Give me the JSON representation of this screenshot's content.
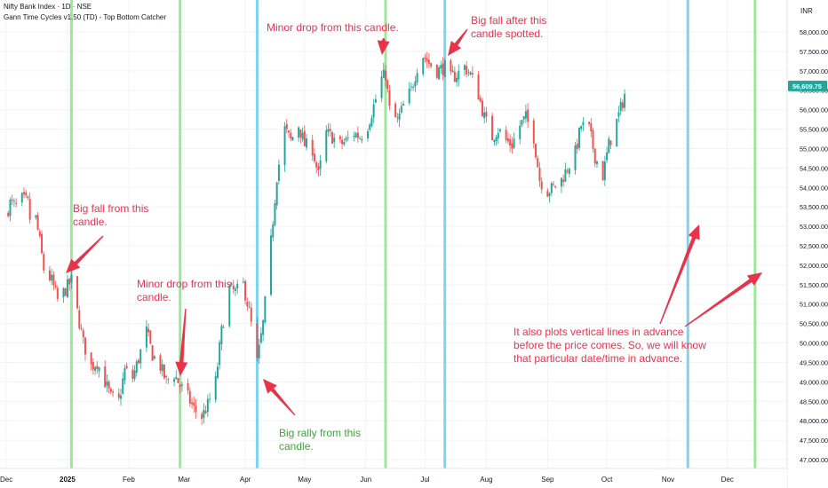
{
  "header": {
    "title": "Nifty Bank Index · 1D · NSE",
    "indicator": "Gann Time Cycles v1.50 (TD) - Top Bottom Catcher"
  },
  "price_axis": {
    "currency": "INR",
    "current_price": "56,609.75",
    "current_price_color": "#26a69a"
  },
  "time_axis_labels": [
    "Dec",
    "2025",
    "Feb",
    "Mar",
    "Apr",
    "May",
    "Jun",
    "Jul",
    "Aug",
    "Sep",
    "Oct",
    "Nov",
    "Dec"
  ],
  "annotations": [
    {
      "text": "Big fall from this\ncandle.",
      "color": "#e8344b"
    },
    {
      "text": "Minor drop from this\ncandle.",
      "color": "#e8344b"
    },
    {
      "text": "Big rally from this\ncandle.",
      "color": "#3fa63c"
    },
    {
      "text": "Minor drop from this candle.",
      "color": "#e8344b"
    },
    {
      "text": "Big fall after this\ncandle spotted.",
      "color": "#e8344b"
    },
    {
      "text": "It also plots vertical lines in advance\nbefore the price comes. So, we will know\nthat particular date/time in advance.",
      "color": "#e8344b"
    }
  ],
  "colors": {
    "up": "#26a69a",
    "down": "#ef5350",
    "green_cycle": "#9be89b",
    "blue_cycle": "#7dd3f2",
    "arrow": "#e8344b"
  },
  "chart_data": {
    "type": "candlestick",
    "ylim": [
      46700,
      58600
    ],
    "y_ticks": [
      47000,
      47500,
      48000,
      48500,
      49000,
      49500,
      50000,
      50500,
      51000,
      51500,
      52000,
      52500,
      53000,
      53500,
      54000,
      54500,
      55000,
      55500,
      56000,
      56500,
      57000,
      57500,
      58000
    ],
    "y_tick_labels": [
      "47,000.00",
      "47,500.00",
      "48,000.00",
      "48,500.00",
      "49,000.00",
      "49,500.00",
      "50,000.00",
      "50,500.00",
      "51,000.00",
      "51,500.00",
      "52,000.00",
      "52,500.00",
      "53,000.00",
      "53,500.00",
      "54,000.00",
      "54,500.00",
      "55,000.00",
      "55,500.00",
      "56,000.00",
      "56,500.00",
      "57,000.00",
      "57,500.00",
      "58,000.00"
    ],
    "xlim": [
      "2024-12-01",
      "2025-12-20"
    ],
    "x_ticks": [
      "2024-12-01",
      "2025-01-01",
      "2025-02-01",
      "2025-03-01",
      "2025-04-01",
      "2025-05-01",
      "2025-06-01",
      "2025-07-01",
      "2025-08-01",
      "2025-09-01",
      "2025-10-01",
      "2025-11-01",
      "2025-12-01"
    ],
    "cycle_lines": [
      {
        "date": "2025-01-03",
        "color": "green"
      },
      {
        "date": "2025-02-27",
        "color": "green"
      },
      {
        "date": "2025-04-07",
        "color": "blue"
      },
      {
        "date": "2025-06-11",
        "color": "green"
      },
      {
        "date": "2025-07-11",
        "color": "blue"
      },
      {
        "date": "2025-11-11",
        "color": "blue"
      },
      {
        "date": "2025-12-15",
        "color": "green"
      }
    ],
    "close_path": [
      [
        "2024-12-01",
        53300
      ],
      [
        "2024-12-03",
        53600
      ],
      [
        "2024-12-06",
        53500
      ],
      [
        "2024-12-09",
        53700
      ],
      [
        "2024-12-12",
        53600
      ],
      [
        "2024-12-14",
        52800
      ],
      [
        "2024-12-16",
        53200
      ],
      [
        "2024-12-18",
        52600
      ],
      [
        "2024-12-20",
        51900
      ],
      [
        "2024-12-24",
        51600
      ],
      [
        "2024-12-27",
        51100
      ],
      [
        "2024-12-30",
        51300
      ],
      [
        "2025-01-03",
        51600
      ],
      [
        "2025-01-06",
        50800
      ],
      [
        "2025-01-09",
        50000
      ],
      [
        "2025-01-13",
        49400
      ],
      [
        "2025-01-16",
        49500
      ],
      [
        "2025-01-20",
        49000
      ],
      [
        "2025-01-23",
        48600
      ],
      [
        "2025-01-27",
        48500
      ],
      [
        "2025-01-30",
        49300
      ],
      [
        "2025-02-03",
        49100
      ],
      [
        "2025-02-06",
        49600
      ],
      [
        "2025-02-10",
        50300
      ],
      [
        "2025-02-13",
        49700
      ],
      [
        "2025-02-17",
        49400
      ],
      [
        "2025-02-20",
        49000
      ],
      [
        "2025-02-24",
        49200
      ],
      [
        "2025-02-27",
        48900
      ],
      [
        "2025-03-03",
        48600
      ],
      [
        "2025-03-06",
        48300
      ],
      [
        "2025-03-10",
        48100
      ],
      [
        "2025-03-13",
        48400
      ],
      [
        "2025-03-17",
        49000
      ],
      [
        "2025-03-20",
        50300
      ],
      [
        "2025-03-24",
        51400
      ],
      [
        "2025-03-27",
        51300
      ],
      [
        "2025-03-31",
        51500
      ],
      [
        "2025-04-03",
        50800
      ],
      [
        "2025-04-07",
        49500
      ],
      [
        "2025-04-10",
        50500
      ],
      [
        "2025-04-14",
        52600
      ],
      [
        "2025-04-17",
        54300
      ],
      [
        "2025-04-21",
        55500
      ],
      [
        "2025-04-24",
        55200
      ],
      [
        "2025-04-28",
        55600
      ],
      [
        "2025-05-01",
        55100
      ],
      [
        "2025-05-05",
        55000
      ],
      [
        "2025-05-08",
        54300
      ],
      [
        "2025-05-12",
        55400
      ],
      [
        "2025-05-15",
        55300
      ],
      [
        "2025-05-19",
        55100
      ],
      [
        "2025-05-22",
        55200
      ],
      [
        "2025-05-26",
        55400
      ],
      [
        "2025-05-29",
        55300
      ],
      [
        "2025-06-02",
        55600
      ],
      [
        "2025-06-05",
        56100
      ],
      [
        "2025-06-09",
        56800
      ],
      [
        "2025-06-11",
        56900
      ],
      [
        "2025-06-13",
        56000
      ],
      [
        "2025-06-17",
        55700
      ],
      [
        "2025-06-20",
        56100
      ],
      [
        "2025-06-24",
        56500
      ],
      [
        "2025-06-27",
        57100
      ],
      [
        "2025-06-30",
        57400
      ],
      [
        "2025-07-03",
        57200
      ],
      [
        "2025-07-07",
        57000
      ],
      [
        "2025-07-11",
        57100
      ],
      [
        "2025-07-14",
        56800
      ],
      [
        "2025-07-17",
        56900
      ],
      [
        "2025-07-21",
        57100
      ],
      [
        "2025-07-24",
        56900
      ],
      [
        "2025-07-28",
        56400
      ],
      [
        "2025-07-31",
        55800
      ],
      [
        "2025-08-04",
        55300
      ],
      [
        "2025-08-07",
        55500
      ],
      [
        "2025-08-11",
        55200
      ],
      [
        "2025-08-14",
        55100
      ],
      [
        "2025-08-18",
        55600
      ],
      [
        "2025-08-21",
        55800
      ],
      [
        "2025-08-25",
        55300
      ],
      [
        "2025-08-28",
        54200
      ],
      [
        "2025-09-01",
        53900
      ],
      [
        "2025-09-04",
        54000
      ],
      [
        "2025-09-08",
        54200
      ],
      [
        "2025-09-11",
        54500
      ],
      [
        "2025-09-15",
        54900
      ],
      [
        "2025-09-18",
        55600
      ],
      [
        "2025-09-22",
        55500
      ],
      [
        "2025-09-25",
        54800
      ],
      [
        "2025-09-29",
        54300
      ],
      [
        "2025-10-02",
        55100
      ],
      [
        "2025-10-06",
        55700
      ],
      [
        "2025-10-09",
        56200
      ],
      [
        "2025-10-11",
        56600
      ]
    ]
  }
}
